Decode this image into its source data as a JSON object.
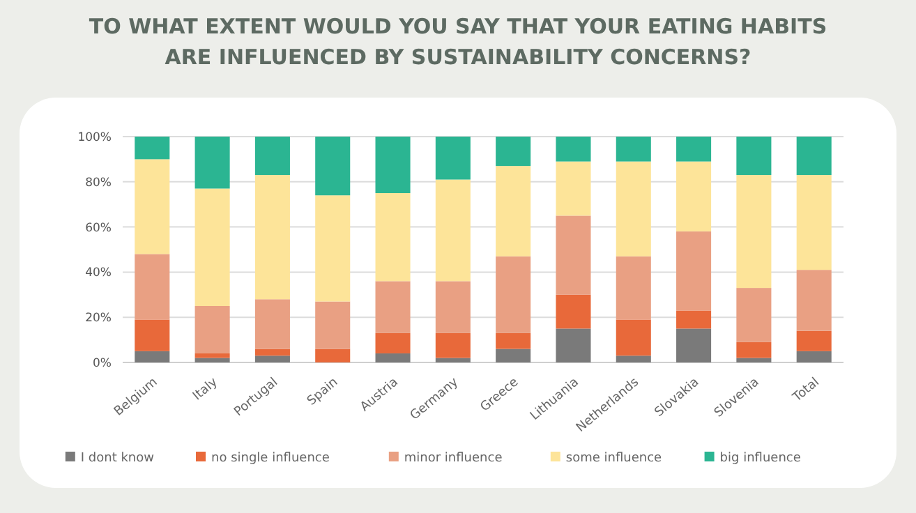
{
  "chart_data": {
    "type": "bar",
    "stacked": true,
    "title": "TO WHAT EXTENT WOULD YOU SAY THAT YOUR EATING HABITS ARE INFLUENCED BY SUSTAINABILITY CONCERNS?",
    "categories": [
      "Belgium",
      "Italy",
      "Portugal",
      "Spain",
      "Austria",
      "Germany",
      "Greece",
      "Lithuania",
      "Netherlands",
      "Slovakia",
      "Slovenia",
      "Total"
    ],
    "series": [
      {
        "name": "I dont know",
        "color": "#7a7a7a",
        "values": [
          5,
          2,
          3,
          0,
          4,
          2,
          6,
          15,
          3,
          15,
          2,
          5
        ]
      },
      {
        "name": "no single influence",
        "color": "#e8693a",
        "values": [
          14,
          2,
          3,
          6,
          9,
          11,
          7,
          15,
          16,
          8,
          7,
          9
        ]
      },
      {
        "name": "minor influence",
        "color": "#e9a083",
        "values": [
          29,
          21,
          22,
          21,
          23,
          23,
          34,
          35,
          28,
          35,
          24,
          27
        ]
      },
      {
        "name": "some influence",
        "color": "#fde499",
        "values": [
          42,
          52,
          55,
          47,
          39,
          45,
          40,
          24,
          42,
          31,
          50,
          42
        ]
      },
      {
        "name": "big influence",
        "color": "#2bb592",
        "values": [
          10,
          23,
          17,
          26,
          25,
          19,
          13,
          11,
          11,
          11,
          17,
          17
        ]
      }
    ],
    "ylim": [
      0,
      100
    ],
    "yticks": [
      {
        "value": 0,
        "label": "0%"
      },
      {
        "value": 20,
        "label": "20%"
      },
      {
        "value": 40,
        "label": "40%"
      },
      {
        "value": 60,
        "label": "60%"
      },
      {
        "value": 80,
        "label": "80%"
      },
      {
        "value": 100,
        "label": "100%"
      }
    ],
    "grid": "y",
    "legend": "bottom"
  }
}
